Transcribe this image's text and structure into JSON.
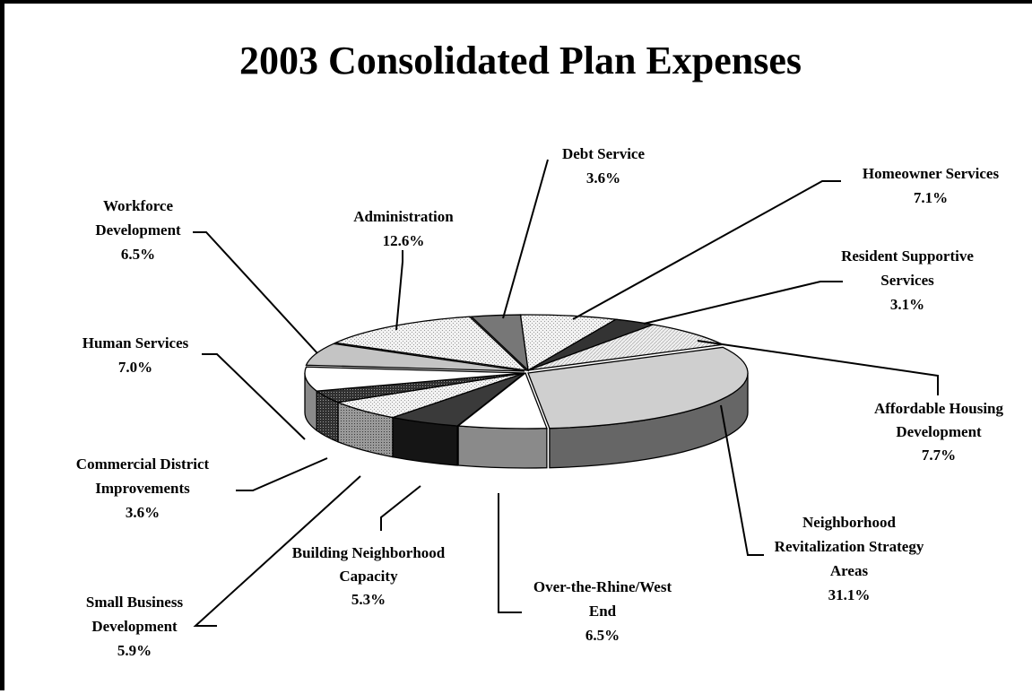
{
  "chart_data": {
    "type": "pie",
    "title": "2003 Consolidated Plan Expenses",
    "slices": [
      {
        "label": [
          "Homeowner Services",
          "7.1%"
        ],
        "value": 7.1
      },
      {
        "label": [
          "Resident Supportive",
          "Services",
          "3.1%"
        ],
        "value": 3.1
      },
      {
        "label": [
          "Affordable Housing",
          "Development",
          "7.7%"
        ],
        "value": 7.7
      },
      {
        "label": [
          "Neighborhood",
          "Revitalization Strategy",
          "Areas",
          "31.1%"
        ],
        "value": 31.1
      },
      {
        "label": [
          "Over-the-Rhine/West",
          "End",
          "6.5%"
        ],
        "value": 6.5
      },
      {
        "label": [
          "Building Neighborhood",
          "Capacity",
          "5.3%"
        ],
        "value": 5.3
      },
      {
        "label": [
          "Small Business",
          "Development",
          "5.9%"
        ],
        "value": 5.9
      },
      {
        "label": [
          "Commercial District",
          "Improvements",
          "3.6%"
        ],
        "value": 3.6
      },
      {
        "label": [
          "Human Services",
          "7.0%"
        ],
        "value": 7.0
      },
      {
        "label": [
          "Workforce",
          "Development",
          "6.5%"
        ],
        "value": 6.5
      },
      {
        "label": [
          "Administration",
          "12.6%"
        ],
        "value": 12.6
      },
      {
        "label": [
          "Debt Service",
          "3.6%"
        ],
        "value": 3.6
      }
    ],
    "style": "3d-exploded-grayscale"
  }
}
